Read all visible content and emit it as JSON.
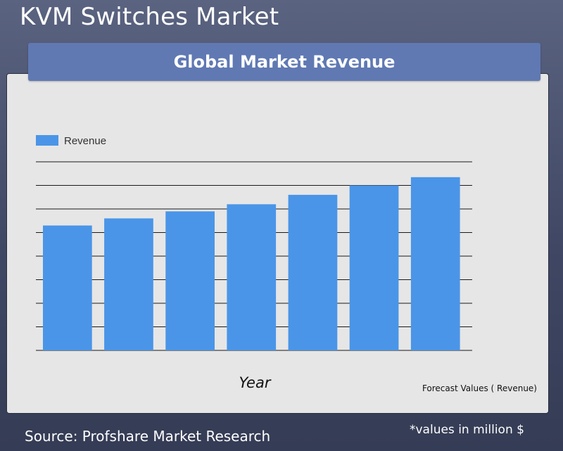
{
  "page": {
    "title": "KVM Switches Market",
    "banner": "Global Market Revenue",
    "source": "Source: Profshare Market Research",
    "note": "*values in million $"
  },
  "chart_data": {
    "type": "bar",
    "categories": [
      "",
      "",
      "",
      "",
      "",
      "",
      ""
    ],
    "series": [
      {
        "name": "Revenue",
        "values": [
          5.3,
          5.6,
          5.9,
          6.2,
          6.6,
          7.0,
          7.35
        ],
        "color": "#4a95e8"
      }
    ],
    "xlabel": "Year",
    "ylabel": "",
    "ylim": [
      0,
      8
    ],
    "grid": true,
    "legend": "top-left",
    "annotation": "Forecast Values ( Revenue)"
  }
}
